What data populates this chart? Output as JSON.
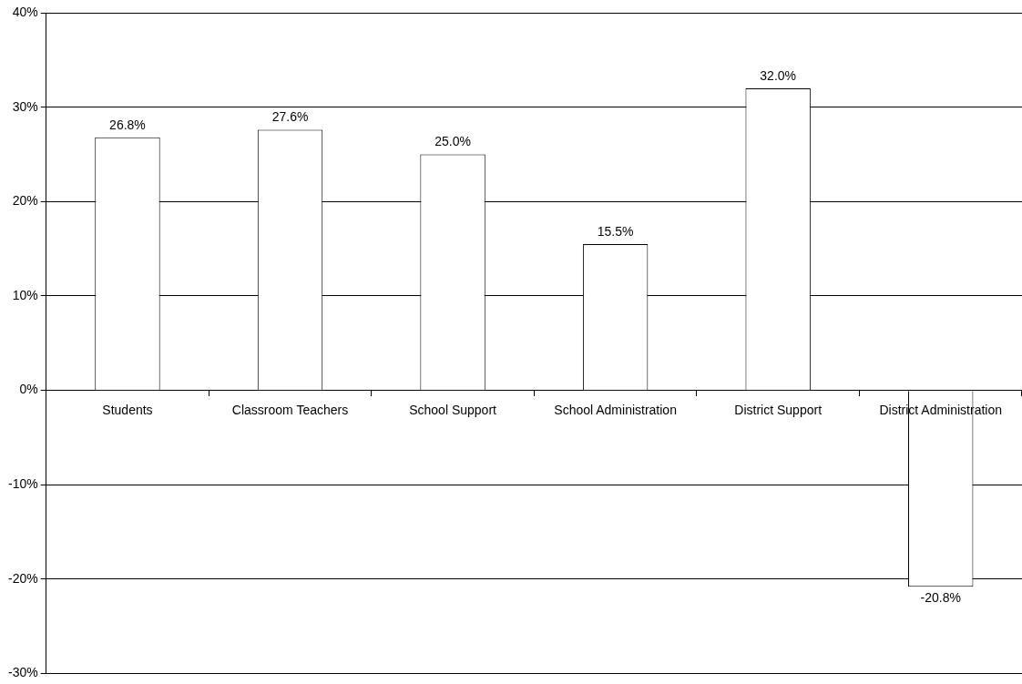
{
  "chart_data": {
    "type": "bar",
    "categories": [
      "Students",
      "Classroom Teachers",
      "School Support",
      "School Administration",
      "District Support",
      "District Administration"
    ],
    "values": [
      26.8,
      27.6,
      25.0,
      15.5,
      32.0,
      -20.8
    ],
    "value_labels": [
      "26.8%",
      "27.6%",
      "25.0%",
      "15.5%",
      "32.0%",
      "-20.8%"
    ],
    "color": "#ffffff",
    "ylim": [
      -30,
      40
    ],
    "yticks": [
      {
        "value": -30,
        "label": "-30%"
      },
      {
        "value": -20,
        "label": "-20%"
      },
      {
        "value": -10,
        "label": "-10%"
      },
      {
        "value": 0,
        "label": "0%"
      },
      {
        "value": 10,
        "label": "10%"
      },
      {
        "value": 20,
        "label": "20%"
      },
      {
        "value": 30,
        "label": "30%"
      },
      {
        "value": 40,
        "label": "40%"
      }
    ],
    "grid": "y",
    "legend": false
  }
}
